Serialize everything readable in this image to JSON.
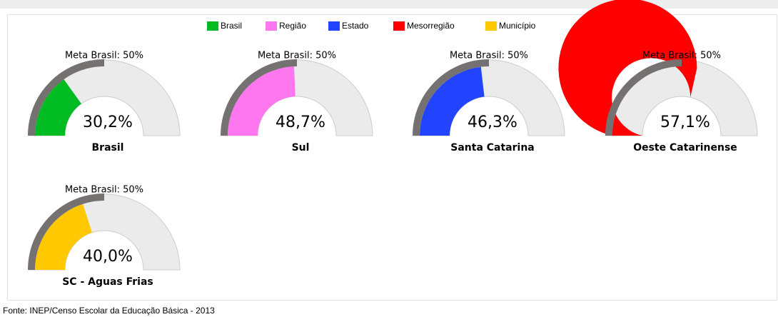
{
  "chart_data": {
    "type": "gauge",
    "ylim": [
      0,
      100
    ],
    "target": 50,
    "target_label": "Meta Brasil: 50%",
    "series": [
      {
        "name": "Brasil",
        "color": "#00bb22",
        "label": "Brasil",
        "values": [
          30.2
        ],
        "value_labels": [
          "30,2%"
        ]
      },
      {
        "name": "Região",
        "color": "#ff77ee",
        "label": "Sul",
        "values": [
          48.7
        ],
        "value_labels": [
          "48,7%"
        ]
      },
      {
        "name": "Estado",
        "color": "#2244ff",
        "label": "Santa Catarina",
        "values": [
          46.3
        ],
        "value_labels": [
          "46,3%"
        ]
      },
      {
        "name": "Mesorregião",
        "color": "#ff0000",
        "label": "Oeste Catarinense",
        "values": [
          57.1
        ],
        "value_labels": [
          "57,1%"
        ]
      },
      {
        "name": "Município",
        "color": "#ffc800",
        "label": "SC - Aguas Frias",
        "values": [
          40.0
        ],
        "value_labels": [
          "40,0%"
        ]
      }
    ],
    "source": "Fonte: INEP/Censo Escolar da Educação Básica - 2013"
  }
}
